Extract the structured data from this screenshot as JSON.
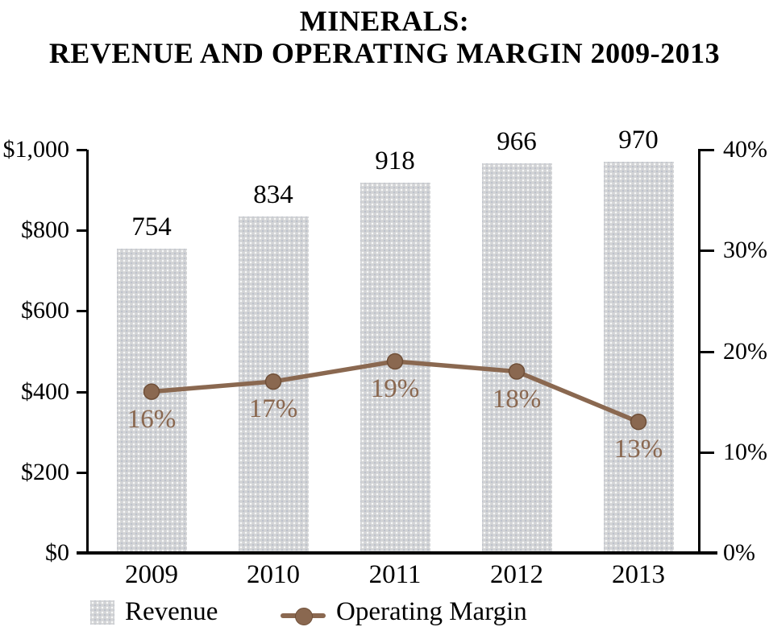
{
  "title": {
    "line1": "MINERALS:",
    "line2": "REVENUE AND OPERATING MARGIN 2009-2013"
  },
  "colors": {
    "bar_fill": "#d3d4d6",
    "line": "#8a6850",
    "line_edge": "#6f4f38",
    "axis": "#000000"
  },
  "chart_data": {
    "type": "bar",
    "subtype": "bar-with-line-overlay",
    "title": "MINERALS: REVENUE AND OPERATING MARGIN 2009-2013",
    "categories": [
      "2009",
      "2010",
      "2011",
      "2012",
      "2013"
    ],
    "series": [
      {
        "name": "Revenue",
        "type": "bar",
        "axis": "left",
        "values": [
          754,
          834,
          918,
          966,
          970
        ],
        "data_labels": [
          "754",
          "834",
          "918",
          "966",
          "970"
        ]
      },
      {
        "name": "Operating Margin",
        "type": "line",
        "axis": "right",
        "values": [
          16,
          17,
          19,
          18,
          13
        ],
        "data_labels": [
          "16%",
          "17%",
          "19%",
          "18%",
          "13%"
        ]
      }
    ],
    "left_axis": {
      "min": 0,
      "max": 1000,
      "tick_values": [
        1000,
        800,
        600,
        400,
        200,
        0
      ],
      "tick_labels": [
        "$1,000",
        "$800",
        "$600",
        "$400",
        "$200",
        "$0"
      ]
    },
    "right_axis": {
      "min": 0,
      "max": 40,
      "tick_values": [
        40,
        30,
        20,
        10,
        0
      ],
      "tick_labels": [
        "40%",
        "30%",
        "20%",
        "10%",
        "0%"
      ]
    },
    "grid": false,
    "legend": {
      "position": "bottom",
      "items": [
        {
          "label": "Revenue"
        },
        {
          "label": "Operating Margin"
        }
      ]
    }
  }
}
